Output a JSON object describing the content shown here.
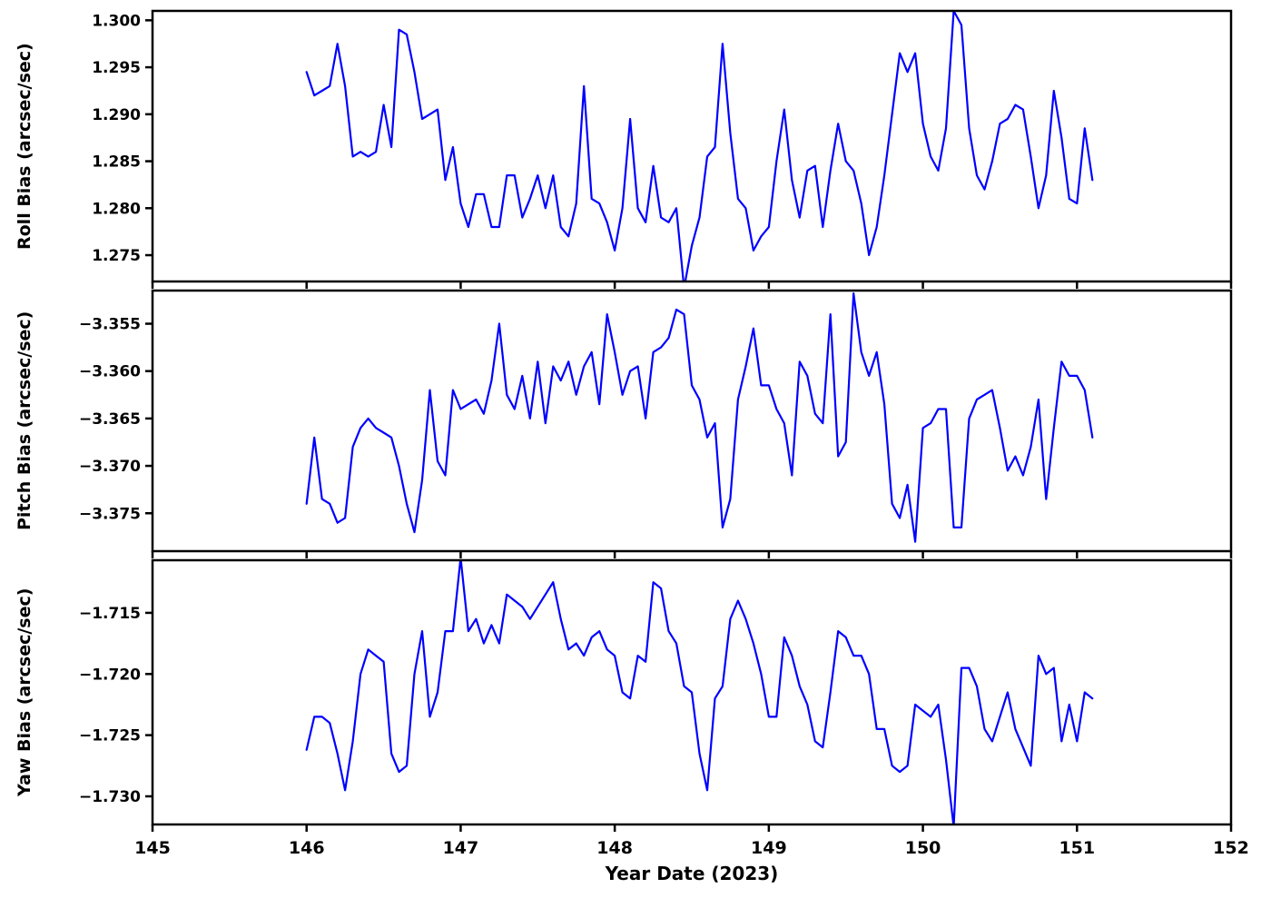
{
  "figure": {
    "background": "#ffffff",
    "line_color": "#0000ff",
    "axis_color": "#000000"
  },
  "chart_data": {
    "type": "line",
    "title": "",
    "xlabel": "Year Date (2023)",
    "xlim": [
      145,
      152
    ],
    "xticks": [
      145,
      146,
      147,
      148,
      149,
      150,
      151,
      152
    ],
    "grid": false,
    "legend": "none",
    "layout": "3 stacked panels, shared x axis",
    "x": [
      146,
      146.05,
      146.1,
      146.15,
      146.2,
      146.25,
      146.3,
      146.35,
      146.4,
      146.45,
      146.5,
      146.55,
      146.6,
      146.65,
      146.7,
      146.75,
      146.8,
      146.85,
      146.9,
      146.95,
      147,
      147.05,
      147.1,
      147.15,
      147.2,
      147.25,
      147.3,
      147.35,
      147.4,
      147.45,
      147.5,
      147.55,
      147.6,
      147.65,
      147.7,
      147.75,
      147.8,
      147.85,
      147.9,
      147.95,
      148,
      148.05,
      148.1,
      148.15,
      148.2,
      148.25,
      148.3,
      148.35,
      148.4,
      148.45,
      148.5,
      148.55,
      148.6,
      148.65,
      148.7,
      148.75,
      148.8,
      148.85,
      148.9,
      148.95,
      149,
      149.05,
      149.1,
      149.15,
      149.2,
      149.25,
      149.3,
      149.35,
      149.4,
      149.45,
      149.5,
      149.55,
      149.6,
      149.65,
      149.7,
      149.75,
      149.8,
      149.85,
      149.9,
      149.95,
      150,
      150.05,
      150.1,
      150.15,
      150.2,
      150.25,
      150.3,
      150.35,
      150.4,
      150.45,
      150.5,
      150.55,
      150.6,
      150.65,
      150.7,
      150.75,
      150.8,
      150.85,
      150.9,
      150.95,
      151,
      151.05,
      151.1
    ],
    "series": [
      {
        "id": "roll",
        "name": "Roll Bias (arcsec/sec)",
        "ylim": [
          1.2722,
          1.301
        ],
        "yticks": [
          1.275,
          1.28,
          1.285,
          1.29,
          1.295,
          1.3
        ],
        "values": [
          1.2945,
          1.292,
          1.2925,
          1.293,
          1.2975,
          1.293,
          1.2855,
          1.286,
          1.2855,
          1.286,
          1.291,
          1.2865,
          1.299,
          1.2985,
          1.2945,
          1.2895,
          1.29,
          1.2905,
          1.283,
          1.2865,
          1.2805,
          1.278,
          1.2815,
          1.2815,
          1.278,
          1.278,
          1.2835,
          1.2835,
          1.279,
          1.281,
          1.2835,
          1.28,
          1.2835,
          1.278,
          1.277,
          1.2805,
          1.293,
          1.281,
          1.2805,
          1.2785,
          1.2755,
          1.28,
          1.2895,
          1.28,
          1.2785,
          1.2845,
          1.279,
          1.2785,
          1.28,
          1.2715,
          1.276,
          1.279,
          1.2855,
          1.2865,
          1.2975,
          1.288,
          1.281,
          1.28,
          1.2755,
          1.277,
          1.278,
          1.285,
          1.2905,
          1.283,
          1.279,
          1.284,
          1.2845,
          1.278,
          1.284,
          1.289,
          1.285,
          1.284,
          1.2805,
          1.275,
          1.278,
          1.2835,
          1.29,
          1.2965,
          1.2945,
          1.2965,
          1.289,
          1.2855,
          1.284,
          1.2885,
          1.301,
          1.2995,
          1.2885,
          1.2835,
          1.282,
          1.285,
          1.289,
          1.2895,
          1.291,
          1.2905,
          1.2855,
          1.28,
          1.2835,
          1.2925,
          1.2875,
          1.281,
          1.2805,
          1.2885,
          1.283
        ]
      },
      {
        "id": "pitch",
        "name": "Pitch Bias (arcsec/sec)",
        "ylim": [
          -3.379,
          -3.3515
        ],
        "yticks": [
          -3.375,
          -3.37,
          -3.365,
          -3.36,
          -3.355
        ],
        "values": [
          -3.374,
          -3.367,
          -3.3735,
          -3.374,
          -3.376,
          -3.3755,
          -3.368,
          -3.366,
          -3.365,
          -3.366,
          -3.3665,
          -3.367,
          -3.37,
          -3.374,
          -3.377,
          -3.3715,
          -3.362,
          -3.3695,
          -3.371,
          -3.362,
          -3.364,
          -3.3635,
          -3.363,
          -3.3645,
          -3.361,
          -3.355,
          -3.3625,
          -3.364,
          -3.3605,
          -3.365,
          -3.359,
          -3.3655,
          -3.3595,
          -3.361,
          -3.359,
          -3.3625,
          -3.3595,
          -3.358,
          -3.3635,
          -3.354,
          -3.358,
          -3.3625,
          -3.36,
          -3.3595,
          -3.365,
          -3.358,
          -3.3575,
          -3.3565,
          -3.3535,
          -3.354,
          -3.3615,
          -3.363,
          -3.367,
          -3.3655,
          -3.3765,
          -3.3735,
          -3.363,
          -3.3595,
          -3.3555,
          -3.3615,
          -3.3615,
          -3.364,
          -3.3655,
          -3.371,
          -3.359,
          -3.3605,
          -3.3645,
          -3.3655,
          -3.354,
          -3.369,
          -3.3675,
          -3.3518,
          -3.358,
          -3.3605,
          -3.358,
          -3.3635,
          -3.374,
          -3.3755,
          -3.372,
          -3.378,
          -3.366,
          -3.3655,
          -3.364,
          -3.364,
          -3.3765,
          -3.3765,
          -3.365,
          -3.363,
          -3.3625,
          -3.362,
          -3.366,
          -3.3705,
          -3.369,
          -3.371,
          -3.368,
          -3.363,
          -3.3735,
          -3.366,
          -3.359,
          -3.3605,
          -3.3605,
          -3.362,
          -3.367
        ]
      },
      {
        "id": "yaw",
        "name": "Yaw Bias (arcsec/sec)",
        "ylim": [
          -1.7323,
          -1.7107
        ],
        "yticks": [
          -1.73,
          -1.725,
          -1.72,
          -1.715
        ],
        "values": [
          -1.7262,
          -1.7235,
          -1.7235,
          -1.724,
          -1.7265,
          -1.7295,
          -1.7255,
          -1.72,
          -1.718,
          -1.7185,
          -1.719,
          -1.7265,
          -1.728,
          -1.7275,
          -1.72,
          -1.7165,
          -1.7235,
          -1.7215,
          -1.7165,
          -1.7165,
          -1.7105,
          -1.7165,
          -1.7155,
          -1.7175,
          -1.716,
          -1.7175,
          -1.7135,
          -1.714,
          -1.7145,
          -1.7155,
          -1.7145,
          -1.7135,
          -1.7125,
          -1.7155,
          -1.718,
          -1.7175,
          -1.7185,
          -1.717,
          -1.7165,
          -1.718,
          -1.7185,
          -1.7215,
          -1.722,
          -1.7185,
          -1.719,
          -1.7125,
          -1.713,
          -1.7165,
          -1.7175,
          -1.721,
          -1.7215,
          -1.7265,
          -1.7295,
          -1.722,
          -1.721,
          -1.7155,
          -1.714,
          -1.7155,
          -1.7175,
          -1.72,
          -1.7235,
          -1.7235,
          -1.717,
          -1.7185,
          -1.721,
          -1.7225,
          -1.7255,
          -1.726,
          -1.7215,
          -1.7165,
          -1.717,
          -1.7185,
          -1.7185,
          -1.72,
          -1.7245,
          -1.7245,
          -1.7275,
          -1.728,
          -1.7275,
          -1.7225,
          -1.723,
          -1.7235,
          -1.7225,
          -1.727,
          -1.7325,
          -1.7195,
          -1.7195,
          -1.721,
          -1.7245,
          -1.7255,
          -1.7235,
          -1.7215,
          -1.7245,
          -1.726,
          -1.7275,
          -1.7185,
          -1.72,
          -1.7195,
          -1.7255,
          -1.7225,
          -1.7255,
          -1.7215,
          -1.722
        ]
      }
    ]
  }
}
